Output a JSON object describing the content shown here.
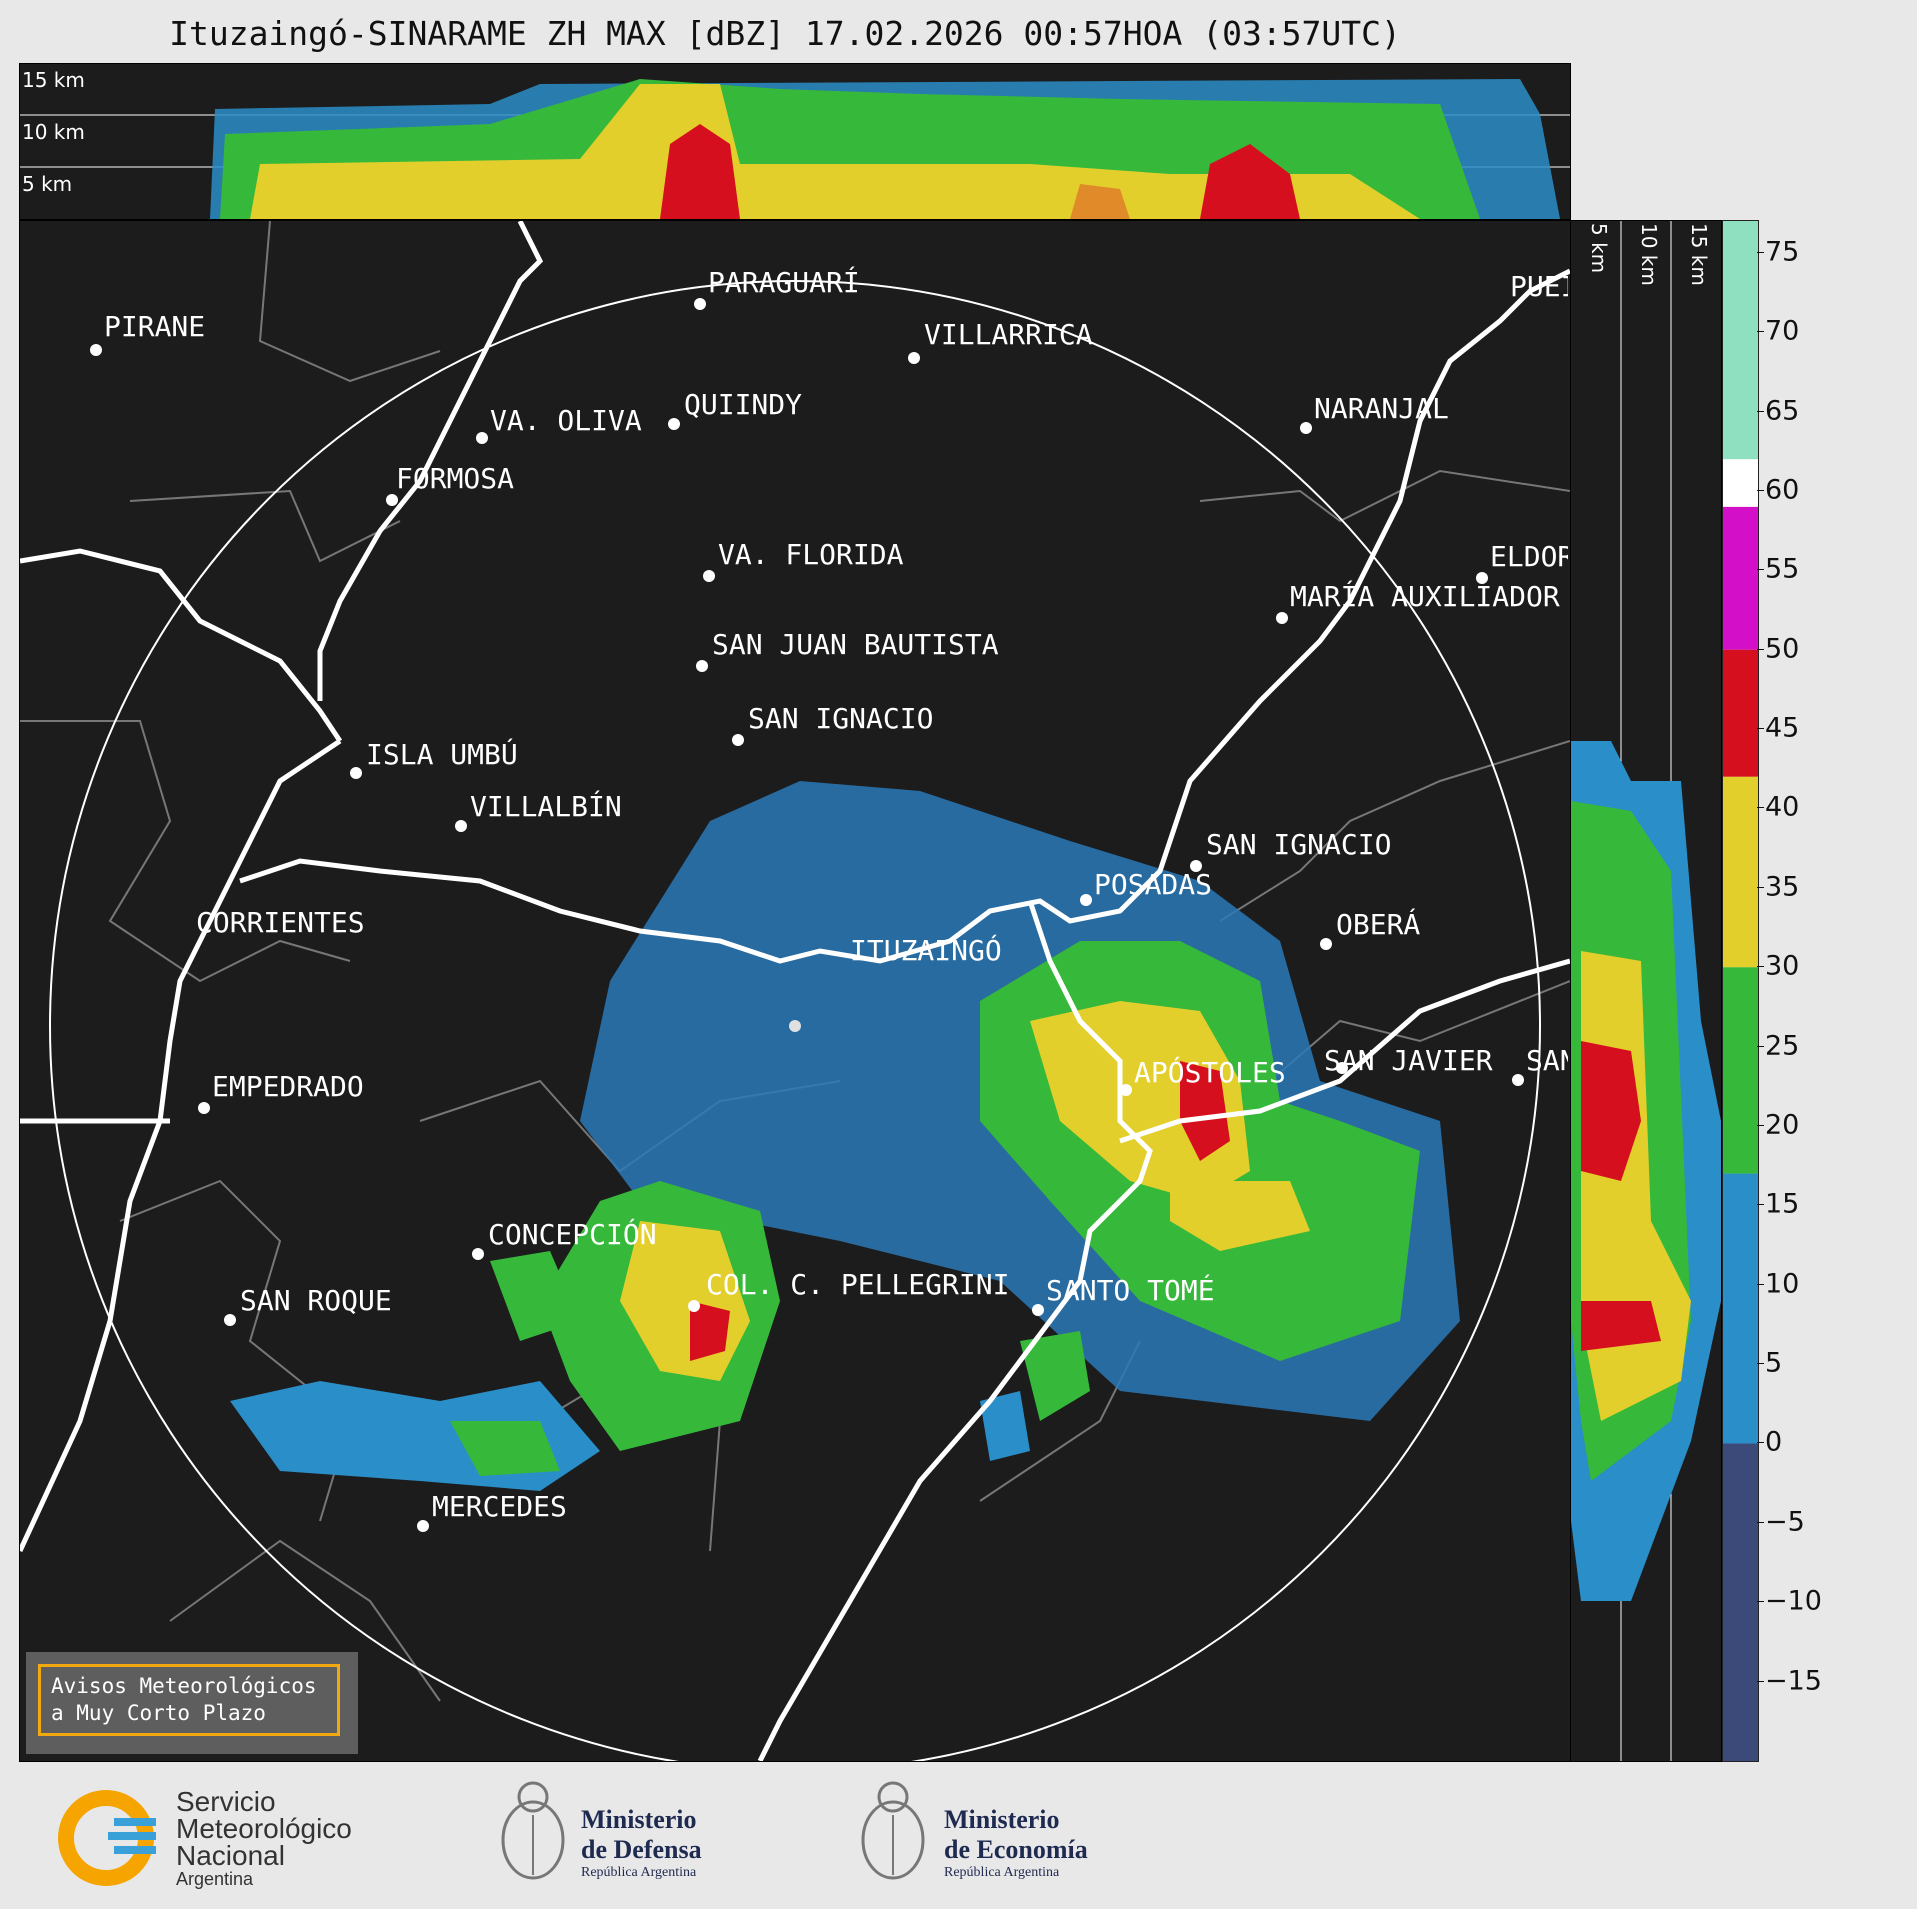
{
  "title": "Ituzaingó-SINARAME ZH MAX [dBZ] 17.02.2026 00:57HOA (03:57UTC)",
  "top_panel": {
    "height_labels": [
      "15 km",
      "10 km",
      "5 km"
    ]
  },
  "side_panel": {
    "height_labels": [
      "5 km",
      "10 km",
      "15 km"
    ]
  },
  "colorbar": {
    "unit": "dBZ",
    "ticks": [
      "75",
      "70",
      "65",
      "60",
      "55",
      "50",
      "45",
      "40",
      "35",
      "30",
      "25",
      "20",
      "15",
      "10",
      "5",
      "0",
      "−5",
      "−10",
      "−15"
    ],
    "tick_values": [
      75,
      70,
      65,
      60,
      55,
      50,
      45,
      40,
      35,
      30,
      25,
      20,
      15,
      10,
      5,
      0,
      -5,
      -10,
      -15
    ],
    "range": [
      -20,
      77
    ],
    "bands": [
      {
        "from": -20,
        "to": 0,
        "color": "#3c4a7a"
      },
      {
        "from": 0,
        "to": 17,
        "color": "#2a8ec8"
      },
      {
        "from": 17,
        "to": 30,
        "color": "#36b83a"
      },
      {
        "from": 30,
        "to": 42,
        "color": "#e2cf2c"
      },
      {
        "from": 42,
        "to": 50,
        "color": "#d60f1e"
      },
      {
        "from": 50,
        "to": 59,
        "color": "#d310c8"
      },
      {
        "from": 59,
        "to": 62,
        "color": "#ffffff"
      },
      {
        "from": 62,
        "to": 77,
        "color": "#8fe0c0"
      }
    ]
  },
  "cities": [
    {
      "name": "PIRANE",
      "id": "pirane"
    },
    {
      "name": "PARAGUARÍ",
      "id": "paraguari"
    },
    {
      "name": "VILLARRICA",
      "id": "villarrica"
    },
    {
      "name": "VA. OLIVA",
      "id": "va-oliva"
    },
    {
      "name": "QUIINDY",
      "id": "quiindy"
    },
    {
      "name": "NARANJAL",
      "id": "naranjal"
    },
    {
      "name": "FORMOSA",
      "id": "formosa"
    },
    {
      "name": "VA. FLORIDA",
      "id": "va-florida"
    },
    {
      "name": "ELDOR",
      "id": "eldorado"
    },
    {
      "name": "MARÍA AUXILIADOR",
      "id": "maria-auxiliadora"
    },
    {
      "name": "SAN JUAN BAUTISTA",
      "id": "san-juan-bautista"
    },
    {
      "name": "SAN IGNACIO",
      "id": "san-ignacio-py"
    },
    {
      "name": "ISLA UMBÚ",
      "id": "isla-umbu"
    },
    {
      "name": "VILLALBÍN",
      "id": "villalbin"
    },
    {
      "name": "SAN IGNACIO",
      "id": "san-ignacio-ar"
    },
    {
      "name": "POSADAS",
      "id": "posadas"
    },
    {
      "name": "CORRIENTES",
      "id": "corrientes"
    },
    {
      "name": "ITUZAINGÓ",
      "id": "ituzaingo"
    },
    {
      "name": "OBERÁ",
      "id": "obera"
    },
    {
      "name": "APÓSTOLES",
      "id": "apostoles"
    },
    {
      "name": "SAN JAVIER",
      "id": "san-javier"
    },
    {
      "name": "SAN",
      "id": "san-right"
    },
    {
      "name": "EMPEDRADO",
      "id": "empedrado"
    },
    {
      "name": "CONCEPCIÓN",
      "id": "concepcion"
    },
    {
      "name": "COL. C. PELLEGRINI",
      "id": "col-pellegrini"
    },
    {
      "name": "SANTO TOMÉ",
      "id": "santo-tome"
    },
    {
      "name": "SAN ROQUE",
      "id": "san-roque"
    },
    {
      "name": "MERCEDES",
      "id": "mercedes"
    },
    {
      "name": "PUEI",
      "id": "puerto"
    }
  ],
  "warning_box": {
    "line1": "Avisos Meteorológicos",
    "line2": "a Muy Corto Plazo"
  },
  "logos": {
    "smn": {
      "line1": "Servicio",
      "line2": "Meteorológico",
      "line3": "Nacional",
      "line4": "Argentina"
    },
    "defensa": {
      "line1": "Ministerio",
      "line2": "de Defensa",
      "line3": "República Argentina"
    },
    "economia": {
      "line1": "Ministerio",
      "line2": "de Economía",
      "line3": "República Argentina"
    }
  },
  "colors": {
    "background": "#1c1c1c",
    "page": "#e8e8e8",
    "warning_border": "#f2a90f"
  }
}
